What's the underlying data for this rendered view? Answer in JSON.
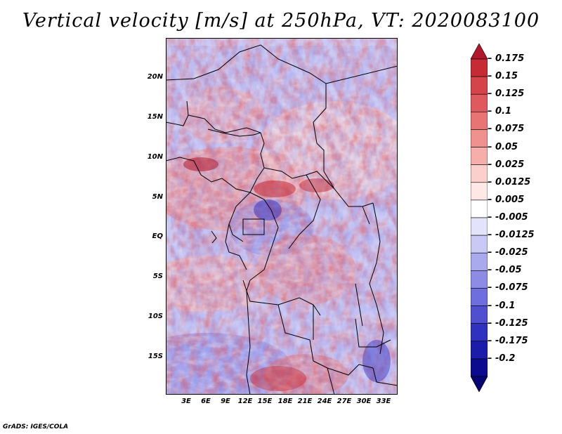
{
  "title": "Vertical velocity [m/s] at 250hPa, VT: 2020083100",
  "lat_ticks": [
    "20N",
    "15N",
    "10N",
    "5N",
    "EQ",
    "5S",
    "10S",
    "15S"
  ],
  "lon_ticks": [
    "3E",
    "6E",
    "9E",
    "12E",
    "15E",
    "18E",
    "21E",
    "24E",
    "27E",
    "30E",
    "33E"
  ],
  "colorbar": {
    "labels": [
      "0.175",
      "0.15",
      "0.125",
      "0.1",
      "0.075",
      "0.05",
      "0.025",
      "0.0125",
      "0.005",
      "-0.005",
      "-0.0125",
      "-0.025",
      "-0.05",
      "-0.075",
      "-0.1",
      "-0.125",
      "-0.175",
      "-0.2"
    ],
    "colors": [
      "#b2182b",
      "#c52a35",
      "#d6434b",
      "#e0595f",
      "#e87574",
      "#f0918d",
      "#f6aeaa",
      "#fbcfcb",
      "#fde8e5",
      "#ffffff",
      "#e3e3fb",
      "#c9c9f5",
      "#a9a9ee",
      "#8c8ce6",
      "#6e6ede",
      "#4f4fd0",
      "#3131c0",
      "#1c1cab",
      "#0b0b8f",
      "#050572"
    ]
  },
  "credit": "GrADS: IGES/COLA"
}
